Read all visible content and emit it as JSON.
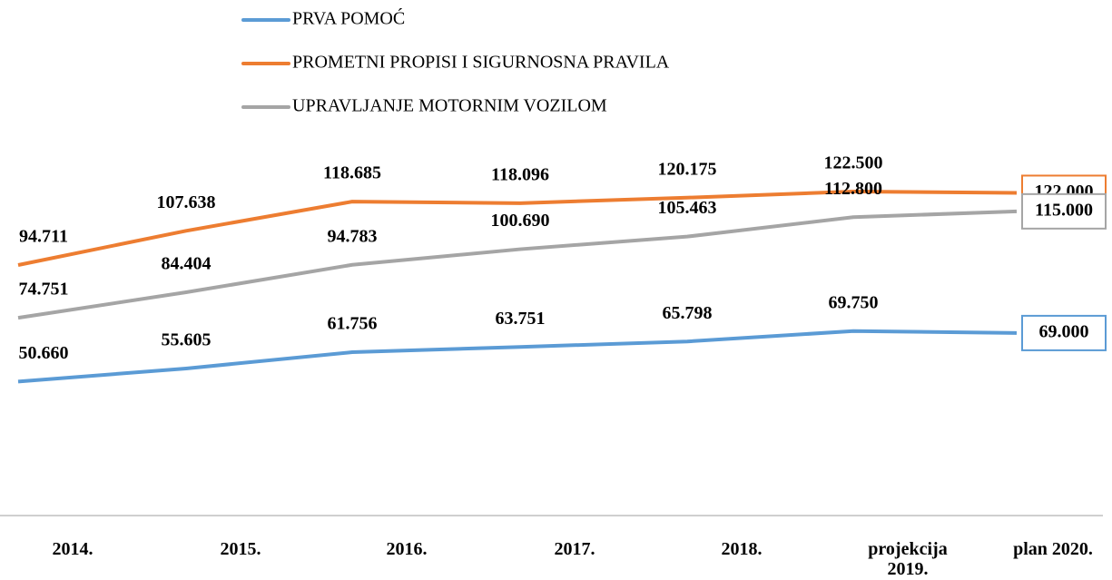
{
  "chart_data": {
    "type": "line",
    "categories": [
      "2014.",
      "2015.",
      "2016.",
      "2017.",
      "2018.",
      "projekcija 2019.",
      "plan 2020."
    ],
    "series": [
      {
        "name": "PRVA POMOĆ",
        "color": "#5b9bd5",
        "values": [
          50660,
          55605,
          61756,
          63751,
          65798,
          69750,
          69000
        ],
        "value_labels": [
          "50.660",
          "55.605",
          "61.756",
          "63.751",
          "65.798",
          "69.750",
          "69.000"
        ]
      },
      {
        "name": "PROMETNI PROPISI I SIGURNOSNA PRAVILA",
        "color": "#ed7d31",
        "values": [
          94711,
          107638,
          118685,
          118096,
          120175,
          122500,
          122000
        ],
        "value_labels": [
          "94.711",
          "107.638",
          "118.685",
          "118.096",
          "120.175",
          "122.500",
          "122.000"
        ]
      },
      {
        "name": "UPRAVLJANJE MOTORNIM VOZILOM",
        "color": "#a5a5a5",
        "values": [
          74751,
          84404,
          94783,
          100690,
          105463,
          112800,
          115000
        ],
        "value_labels": [
          "74.751",
          "84.404",
          "94.783",
          "100.690",
          "105.463",
          "112.800",
          "115.000"
        ]
      }
    ],
    "ylim": [
      0,
      140000
    ]
  }
}
